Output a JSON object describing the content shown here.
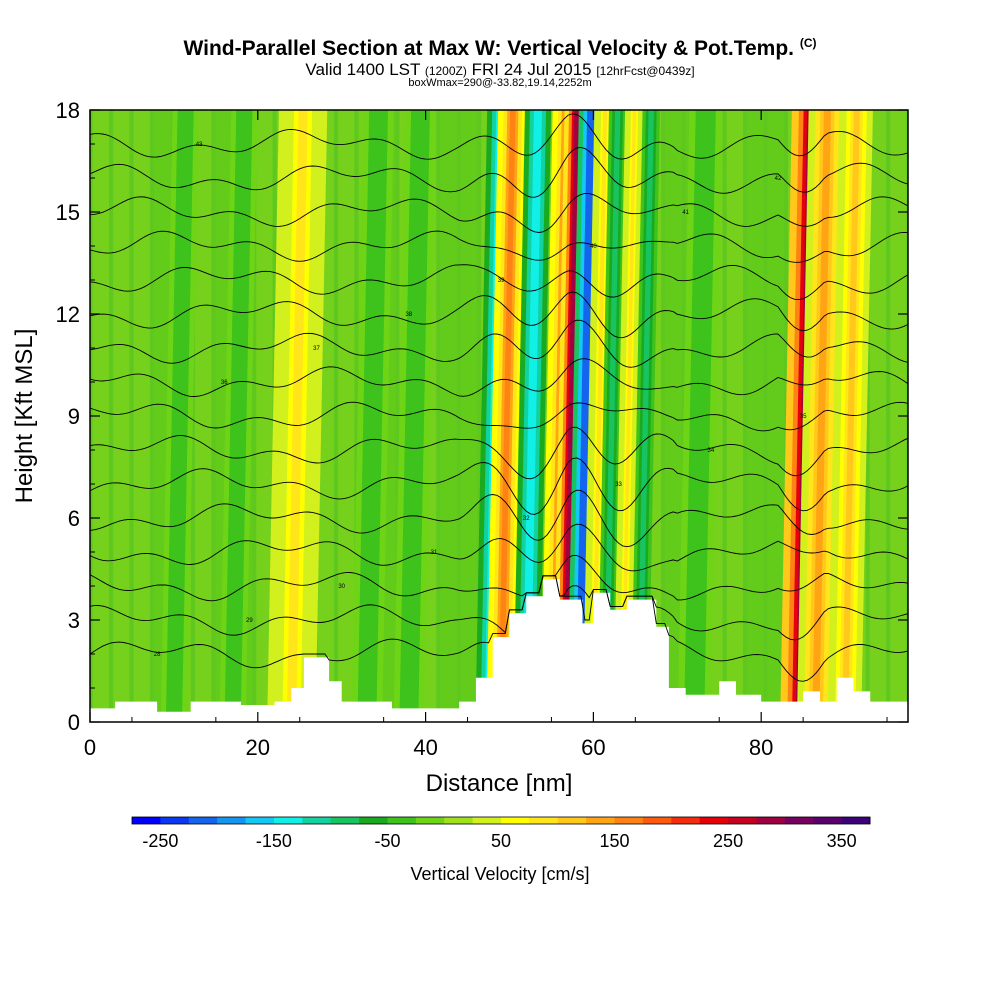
{
  "header": {
    "title": "Wind-Parallel Section at Max W: Vertical Velocity & Pot.Temp.",
    "copyright": "(C)",
    "valid_prefix": "Valid 1400 LST",
    "valid_utc": "(1200Z)",
    "valid_date": "FRI 24 Jul 2015",
    "forecast": "[12hrFcst@0439z]",
    "box_info": "boxWmax=290@-33.82,19.14,2252m"
  },
  "chart_data": {
    "type": "heatmap",
    "title": "Wind-Parallel Section at Max W: Vertical Velocity & Pot.Temp.",
    "xlabel": "Distance [nm]",
    "ylabel": "Height [Kft MSL]",
    "xlim": [
      0,
      97.5
    ],
    "ylim": [
      0,
      18
    ],
    "xticks": [
      0,
      20,
      40,
      60,
      80
    ],
    "yticks": [
      0,
      3,
      6,
      9,
      12,
      15,
      18
    ],
    "colorbar": {
      "label": "Vertical Velocity [cm/s]",
      "min": -275,
      "max": 375,
      "step": 25,
      "tick_labels": [
        -250,
        -150,
        -50,
        50,
        150,
        250,
        350
      ],
      "colors": [
        "#0000ff",
        "#0a37f2",
        "#1464ee",
        "#1496f0",
        "#14c8f5",
        "#10f0e6",
        "#12d2a0",
        "#18c460",
        "#1aaa20",
        "#3ec21c",
        "#6ed416",
        "#a0e21a",
        "#d2f01e",
        "#ffff00",
        "#ffe51a",
        "#ffc81a",
        "#ffa514",
        "#ff8214",
        "#ff5a10",
        "#f52d0f",
        "#e6000a",
        "#c80020",
        "#a00040",
        "#780060",
        "#5a006e",
        "#3c0078"
      ]
    },
    "velocity_features_cms": [
      {
        "x": 47.5,
        "w": 1.2,
        "value": -150
      },
      {
        "x": 49.0,
        "w": 1.1,
        "value": 150
      },
      {
        "x": 52.0,
        "w": 1.2,
        "value": -150
      },
      {
        "x": 55.5,
        "w": 1.1,
        "value": 150
      },
      {
        "x": 56.6,
        "w": 0.9,
        "value": 275
      },
      {
        "x": 58.3,
        "w": 1.1,
        "value": -225
      },
      {
        "x": 60.0,
        "w": 0.8,
        "value": 75
      },
      {
        "x": 61.5,
        "w": 0.8,
        "value": -100
      },
      {
        "x": 63.5,
        "w": 0.7,
        "value": 75
      },
      {
        "x": 65.5,
        "w": 0.8,
        "value": -100
      },
      {
        "x": 84.5,
        "w": 1.4,
        "value": 290
      },
      {
        "x": 86.5,
        "w": 1.4,
        "value": 125
      },
      {
        "x": 90.0,
        "w": 1.2,
        "value": 100
      },
      {
        "x": 24.0,
        "w": 1.8,
        "value": 75
      },
      {
        "x": 10.0,
        "w": 1.2,
        "value": -40
      },
      {
        "x": 17.0,
        "w": 1.2,
        "value": -40
      },
      {
        "x": 33.0,
        "w": 1.4,
        "value": -40
      },
      {
        "x": 38.0,
        "w": 1.4,
        "value": -40
      },
      {
        "x": 72.0,
        "w": 1.5,
        "value": -40
      }
    ],
    "terrain_kft": [
      {
        "x": 0,
        "h": 0.4
      },
      {
        "x": 3,
        "h": 0.6
      },
      {
        "x": 6,
        "h": 0.6
      },
      {
        "x": 8,
        "h": 0.3
      },
      {
        "x": 12,
        "h": 0.6
      },
      {
        "x": 18,
        "h": 0.5
      },
      {
        "x": 22,
        "h": 0.6
      },
      {
        "x": 24,
        "h": 1.0
      },
      {
        "x": 25.5,
        "h": 1.9
      },
      {
        "x": 27,
        "h": 1.9
      },
      {
        "x": 28.5,
        "h": 1.2
      },
      {
        "x": 30,
        "h": 0.6
      },
      {
        "x": 36,
        "h": 0.4
      },
      {
        "x": 40,
        "h": 0.4
      },
      {
        "x": 44,
        "h": 0.6
      },
      {
        "x": 46,
        "h": 1.3
      },
      {
        "x": 48,
        "h": 2.5
      },
      {
        "x": 50,
        "h": 3.2
      },
      {
        "x": 52,
        "h": 3.7
      },
      {
        "x": 54,
        "h": 4.2
      },
      {
        "x": 56,
        "h": 3.6
      },
      {
        "x": 57.5,
        "h": 3.6
      },
      {
        "x": 58.7,
        "h": 2.9
      },
      {
        "x": 60,
        "h": 3.8
      },
      {
        "x": 62,
        "h": 3.3
      },
      {
        "x": 64,
        "h": 3.6
      },
      {
        "x": 66,
        "h": 3.6
      },
      {
        "x": 67.5,
        "h": 2.8
      },
      {
        "x": 69,
        "h": 1.0
      },
      {
        "x": 71,
        "h": 0.8
      },
      {
        "x": 75,
        "h": 1.2
      },
      {
        "x": 77,
        "h": 0.8
      },
      {
        "x": 80,
        "h": 0.6
      },
      {
        "x": 83,
        "h": 0.6
      },
      {
        "x": 85,
        "h": 0.9
      },
      {
        "x": 87,
        "h": 0.6
      },
      {
        "x": 89,
        "h": 1.3
      },
      {
        "x": 91,
        "h": 0.9
      },
      {
        "x": 93,
        "h": 0.6
      },
      {
        "x": 97.5,
        "h": 0.6
      }
    ],
    "isentropes": {
      "base_heights_kft": [
        2.0,
        3.0,
        4.0,
        5.0,
        6.0,
        7.0,
        8.0,
        9.0,
        10.0,
        11.0,
        12.0,
        13.0,
        14.0,
        15.0,
        16.0,
        17.0
      ],
      "labels": [
        "28",
        "29",
        "30",
        "31",
        "32",
        "33",
        "34",
        "35",
        "36",
        "37",
        "38",
        "39",
        "40",
        "41",
        "42",
        "43"
      ]
    }
  },
  "colors": {
    "background": "#5ec81e",
    "frame": "#000000",
    "contour": "#000000",
    "terrain": "#ffffff"
  }
}
